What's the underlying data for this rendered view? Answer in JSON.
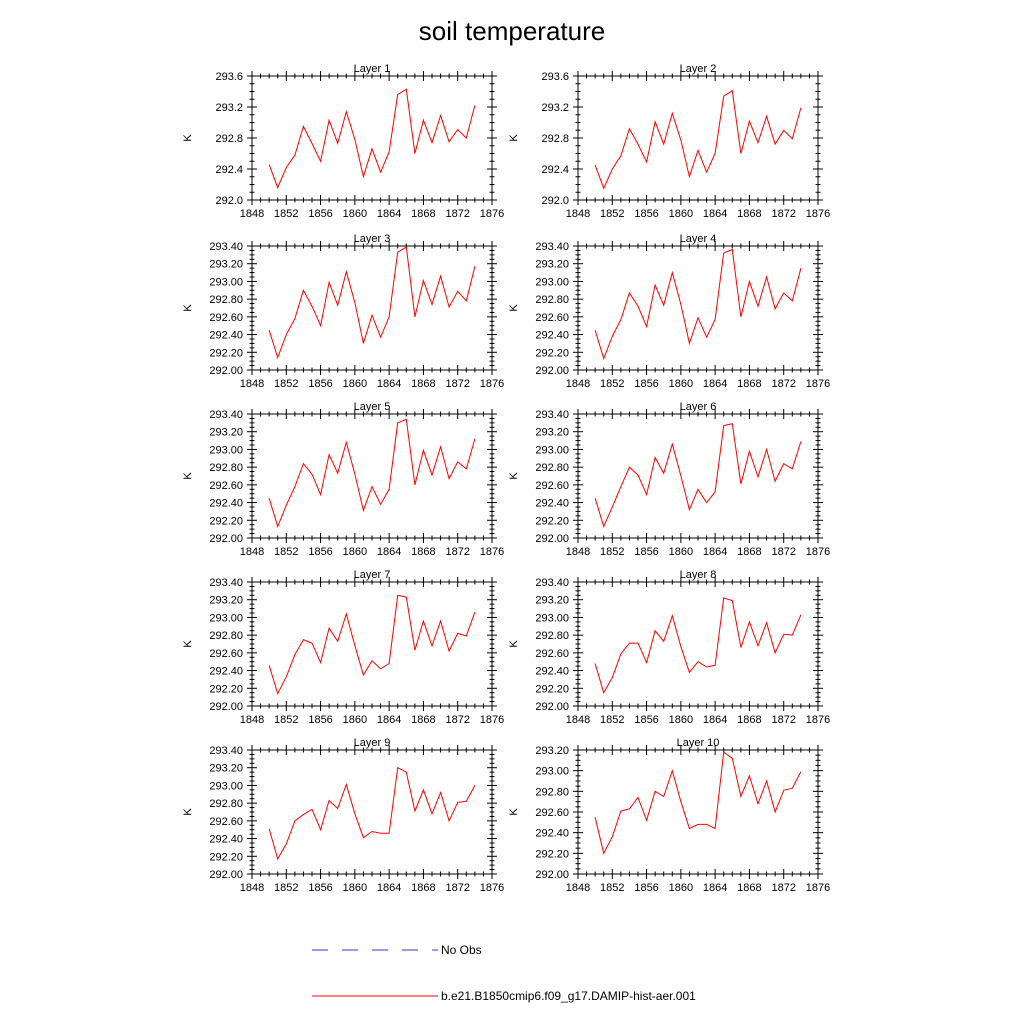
{
  "figure": {
    "title": "soil temperature",
    "legend": [
      {
        "label": "No Obs",
        "color": "#3333cc",
        "style": "dashed"
      },
      {
        "label": "b.e21.B1850cmip6.f09_g17.DAMIP-hist-aer.001",
        "color": "#ff0000",
        "style": "solid"
      }
    ],
    "line_color": "#ff0000"
  },
  "chart_data": [
    {
      "type": "line",
      "title": "Layer 1",
      "ylabel": "K",
      "xlim": [
        1848,
        1876
      ],
      "ylim": [
        292.0,
        293.6
      ],
      "xticks": [
        "1848",
        "1852",
        "1856",
        "1860",
        "1864",
        "1868",
        "1872",
        "1876"
      ],
      "yticks": [
        "292.0",
        "292.4",
        "292.8",
        "293.2",
        "293.6"
      ],
      "x": [
        1850,
        1851,
        1852,
        1853,
        1854,
        1855,
        1856,
        1857,
        1858,
        1859,
        1860,
        1861,
        1862,
        1863,
        1864,
        1865,
        1866,
        1867,
        1868,
        1869,
        1870,
        1871,
        1872,
        1873,
        1874
      ],
      "series": [
        {
          "name": "b.e21.B1850cmip6.f09_g17.DAMIP-hist-aer.001",
          "values": [
            292.46,
            292.16,
            292.42,
            292.58,
            292.95,
            292.73,
            292.5,
            293.03,
            292.73,
            293.14,
            292.78,
            292.3,
            292.66,
            292.36,
            292.62,
            293.36,
            293.43,
            292.6,
            293.03,
            292.74,
            293.09,
            292.75,
            292.91,
            292.8,
            293.22
          ]
        }
      ]
    },
    {
      "type": "line",
      "title": "Layer 2",
      "ylabel": "K",
      "xlim": [
        1848,
        1876
      ],
      "ylim": [
        292.0,
        293.6
      ],
      "xticks": [
        "1848",
        "1852",
        "1856",
        "1860",
        "1864",
        "1868",
        "1872",
        "1876"
      ],
      "yticks": [
        "292.0",
        "292.4",
        "292.8",
        "293.2",
        "293.6"
      ],
      "x": [
        1850,
        1851,
        1852,
        1853,
        1854,
        1855,
        1856,
        1857,
        1858,
        1859,
        1860,
        1861,
        1862,
        1863,
        1864,
        1865,
        1866,
        1867,
        1868,
        1869,
        1870,
        1871,
        1872,
        1873,
        1874
      ],
      "series": [
        {
          "name": "b.e21.B1850cmip6.f09_g17.DAMIP-hist-aer.001",
          "values": [
            292.45,
            292.15,
            292.4,
            292.57,
            292.92,
            292.72,
            292.49,
            293.01,
            292.72,
            293.12,
            292.77,
            292.3,
            292.64,
            292.36,
            292.6,
            293.34,
            293.41,
            292.6,
            293.02,
            292.74,
            293.08,
            292.72,
            292.9,
            292.79,
            293.19
          ]
        }
      ]
    },
    {
      "type": "line",
      "title": "Layer 3",
      "ylabel": "K",
      "xlim": [
        1848,
        1876
      ],
      "ylim": [
        292.0,
        293.4
      ],
      "xticks": [
        "1848",
        "1852",
        "1856",
        "1860",
        "1864",
        "1868",
        "1872",
        "1876"
      ],
      "yticks": [
        "292.00",
        "292.20",
        "292.40",
        "292.60",
        "292.80",
        "293.00",
        "293.20",
        "293.40"
      ],
      "x": [
        1850,
        1851,
        1852,
        1853,
        1854,
        1855,
        1856,
        1857,
        1858,
        1859,
        1860,
        1861,
        1862,
        1863,
        1864,
        1865,
        1866,
        1867,
        1868,
        1869,
        1870,
        1871,
        1872,
        1873,
        1874
      ],
      "series": [
        {
          "name": "b.e21.B1850cmip6.f09_g17.DAMIP-hist-aer.001",
          "values": [
            292.45,
            292.14,
            292.4,
            292.58,
            292.9,
            292.72,
            292.5,
            292.99,
            292.73,
            293.11,
            292.76,
            292.3,
            292.62,
            292.37,
            292.6,
            293.33,
            293.39,
            292.6,
            293.01,
            292.74,
            293.06,
            292.71,
            292.89,
            292.78,
            293.17
          ]
        }
      ]
    },
    {
      "type": "line",
      "title": "Layer 4",
      "ylabel": "K",
      "xlim": [
        1848,
        1876
      ],
      "ylim": [
        292.0,
        293.4
      ],
      "xticks": [
        "1848",
        "1852",
        "1856",
        "1860",
        "1864",
        "1868",
        "1872",
        "1876"
      ],
      "yticks": [
        "292.00",
        "292.20",
        "292.40",
        "292.60",
        "292.80",
        "293.00",
        "293.20",
        "293.40"
      ],
      "x": [
        1850,
        1851,
        1852,
        1853,
        1854,
        1855,
        1856,
        1857,
        1858,
        1859,
        1860,
        1861,
        1862,
        1863,
        1864,
        1865,
        1866,
        1867,
        1868,
        1869,
        1870,
        1871,
        1872,
        1873,
        1874
      ],
      "series": [
        {
          "name": "b.e21.B1850cmip6.f09_g17.DAMIP-hist-aer.001",
          "values": [
            292.45,
            292.13,
            292.38,
            292.57,
            292.87,
            292.72,
            292.49,
            292.96,
            292.73,
            293.1,
            292.74,
            292.3,
            292.59,
            292.37,
            292.57,
            293.32,
            293.36,
            292.6,
            293.0,
            292.72,
            293.05,
            292.69,
            292.87,
            292.78,
            293.15
          ]
        }
      ]
    },
    {
      "type": "line",
      "title": "Layer 5",
      "ylabel": "K",
      "xlim": [
        1848,
        1876
      ],
      "ylim": [
        292.0,
        293.4
      ],
      "xticks": [
        "1848",
        "1852",
        "1856",
        "1860",
        "1864",
        "1868",
        "1872",
        "1876"
      ],
      "yticks": [
        "292.00",
        "292.20",
        "292.40",
        "292.60",
        "292.80",
        "293.00",
        "293.20",
        "293.40"
      ],
      "x": [
        1850,
        1851,
        1852,
        1853,
        1854,
        1855,
        1856,
        1857,
        1858,
        1859,
        1860,
        1861,
        1862,
        1863,
        1864,
        1865,
        1866,
        1867,
        1868,
        1869,
        1870,
        1871,
        1872,
        1873,
        1874
      ],
      "series": [
        {
          "name": "b.e21.B1850cmip6.f09_g17.DAMIP-hist-aer.001",
          "values": [
            292.45,
            292.13,
            292.37,
            292.58,
            292.84,
            292.72,
            292.49,
            292.94,
            292.73,
            293.08,
            292.72,
            292.31,
            292.58,
            292.38,
            292.55,
            293.3,
            293.34,
            292.6,
            292.99,
            292.71,
            293.03,
            292.67,
            292.86,
            292.78,
            293.12
          ]
        }
      ]
    },
    {
      "type": "line",
      "title": "Layer 6",
      "ylabel": "K",
      "xlim": [
        1848,
        1876
      ],
      "ylim": [
        292.0,
        293.4
      ],
      "xticks": [
        "1848",
        "1852",
        "1856",
        "1860",
        "1864",
        "1868",
        "1872",
        "1876"
      ],
      "yticks": [
        "292.00",
        "292.20",
        "292.40",
        "292.60",
        "292.80",
        "293.00",
        "293.20",
        "293.40"
      ],
      "x": [
        1850,
        1851,
        1852,
        1853,
        1854,
        1855,
        1856,
        1857,
        1858,
        1859,
        1860,
        1861,
        1862,
        1863,
        1864,
        1865,
        1866,
        1867,
        1868,
        1869,
        1870,
        1871,
        1872,
        1873,
        1874
      ],
      "series": [
        {
          "name": "b.e21.B1850cmip6.f09_g17.DAMIP-hist-aer.001",
          "values": [
            292.45,
            292.13,
            292.35,
            292.58,
            292.8,
            292.71,
            292.49,
            292.91,
            292.73,
            293.06,
            292.7,
            292.32,
            292.55,
            292.4,
            292.52,
            293.27,
            293.29,
            292.61,
            292.98,
            292.69,
            293.0,
            292.64,
            292.84,
            292.78,
            293.09
          ]
        }
      ]
    },
    {
      "type": "line",
      "title": "Layer 7",
      "ylabel": "K",
      "xlim": [
        1848,
        1876
      ],
      "ylim": [
        292.0,
        293.4
      ],
      "xticks": [
        "1848",
        "1852",
        "1856",
        "1860",
        "1864",
        "1868",
        "1872",
        "1876"
      ],
      "yticks": [
        "292.00",
        "292.20",
        "292.40",
        "292.60",
        "292.80",
        "293.00",
        "293.20",
        "293.40"
      ],
      "x": [
        1850,
        1851,
        1852,
        1853,
        1854,
        1855,
        1856,
        1857,
        1858,
        1859,
        1860,
        1861,
        1862,
        1863,
        1864,
        1865,
        1866,
        1867,
        1868,
        1869,
        1870,
        1871,
        1872,
        1873,
        1874
      ],
      "series": [
        {
          "name": "b.e21.B1850cmip6.f09_g17.DAMIP-hist-aer.001",
          "values": [
            292.46,
            292.14,
            292.33,
            292.58,
            292.75,
            292.71,
            292.49,
            292.88,
            292.73,
            293.04,
            292.68,
            292.35,
            292.51,
            292.42,
            292.48,
            293.25,
            293.23,
            292.63,
            292.96,
            292.68,
            292.96,
            292.62,
            292.82,
            292.79,
            293.06
          ]
        }
      ]
    },
    {
      "type": "line",
      "title": "Layer 8",
      "ylabel": "K",
      "xlim": [
        1848,
        1876
      ],
      "ylim": [
        292.0,
        293.4
      ],
      "xticks": [
        "1848",
        "1852",
        "1856",
        "1860",
        "1864",
        "1868",
        "1872",
        "1876"
      ],
      "yticks": [
        "292.00",
        "292.20",
        "292.40",
        "292.60",
        "292.80",
        "293.00",
        "293.20",
        "293.40"
      ],
      "x": [
        1850,
        1851,
        1852,
        1853,
        1854,
        1855,
        1856,
        1857,
        1858,
        1859,
        1860,
        1861,
        1862,
        1863,
        1864,
        1865,
        1866,
        1867,
        1868,
        1869,
        1870,
        1871,
        1872,
        1873,
        1874
      ],
      "series": [
        {
          "name": "b.e21.B1850cmip6.f09_g17.DAMIP-hist-aer.001",
          "values": [
            292.48,
            292.15,
            292.32,
            292.59,
            292.71,
            292.71,
            292.49,
            292.85,
            292.73,
            293.02,
            292.67,
            292.38,
            292.5,
            292.44,
            292.46,
            293.22,
            293.19,
            292.66,
            292.95,
            292.68,
            292.94,
            292.6,
            292.81,
            292.8,
            293.03
          ]
        }
      ]
    },
    {
      "type": "line",
      "title": "Layer 9",
      "ylabel": "K",
      "xlim": [
        1848,
        1876
      ],
      "ylim": [
        292.0,
        293.4
      ],
      "xticks": [
        "1848",
        "1852",
        "1856",
        "1860",
        "1864",
        "1868",
        "1872",
        "1876"
      ],
      "yticks": [
        "292.00",
        "292.20",
        "292.40",
        "292.60",
        "292.80",
        "293.00",
        "293.20",
        "293.40"
      ],
      "x": [
        1850,
        1851,
        1852,
        1853,
        1854,
        1855,
        1856,
        1857,
        1858,
        1859,
        1860,
        1861,
        1862,
        1863,
        1864,
        1865,
        1866,
        1867,
        1868,
        1869,
        1870,
        1871,
        1872,
        1873,
        1874
      ],
      "series": [
        {
          "name": "b.e21.B1850cmip6.f09_g17.DAMIP-hist-aer.001",
          "values": [
            292.51,
            292.17,
            292.34,
            292.6,
            292.67,
            292.73,
            292.5,
            292.83,
            292.74,
            293.01,
            292.68,
            292.41,
            292.48,
            292.46,
            292.46,
            293.2,
            293.15,
            292.71,
            292.95,
            292.68,
            292.92,
            292.6,
            292.81,
            292.82,
            293.0
          ]
        }
      ]
    },
    {
      "type": "line",
      "title": "Layer 10",
      "ylabel": "K",
      "xlim": [
        1848,
        1876
      ],
      "ylim": [
        292.0,
        293.2
      ],
      "xticks": [
        "1848",
        "1852",
        "1856",
        "1860",
        "1864",
        "1868",
        "1872",
        "1876"
      ],
      "yticks": [
        "292.00",
        "292.20",
        "292.40",
        "292.60",
        "292.80",
        "293.00",
        "293.20"
      ],
      "x": [
        1850,
        1851,
        1852,
        1853,
        1854,
        1855,
        1856,
        1857,
        1858,
        1859,
        1860,
        1861,
        1862,
        1863,
        1864,
        1865,
        1866,
        1867,
        1868,
        1869,
        1870,
        1871,
        1872,
        1873,
        1874
      ],
      "series": [
        {
          "name": "b.e21.B1850cmip6.f09_g17.DAMIP-hist-aer.001",
          "values": [
            292.55,
            292.2,
            292.36,
            292.61,
            292.63,
            292.74,
            292.52,
            292.8,
            292.75,
            293.0,
            292.7,
            292.44,
            292.48,
            292.48,
            292.44,
            293.18,
            293.12,
            292.75,
            292.95,
            292.68,
            292.9,
            292.6,
            292.81,
            292.83,
            292.99
          ]
        }
      ]
    }
  ]
}
